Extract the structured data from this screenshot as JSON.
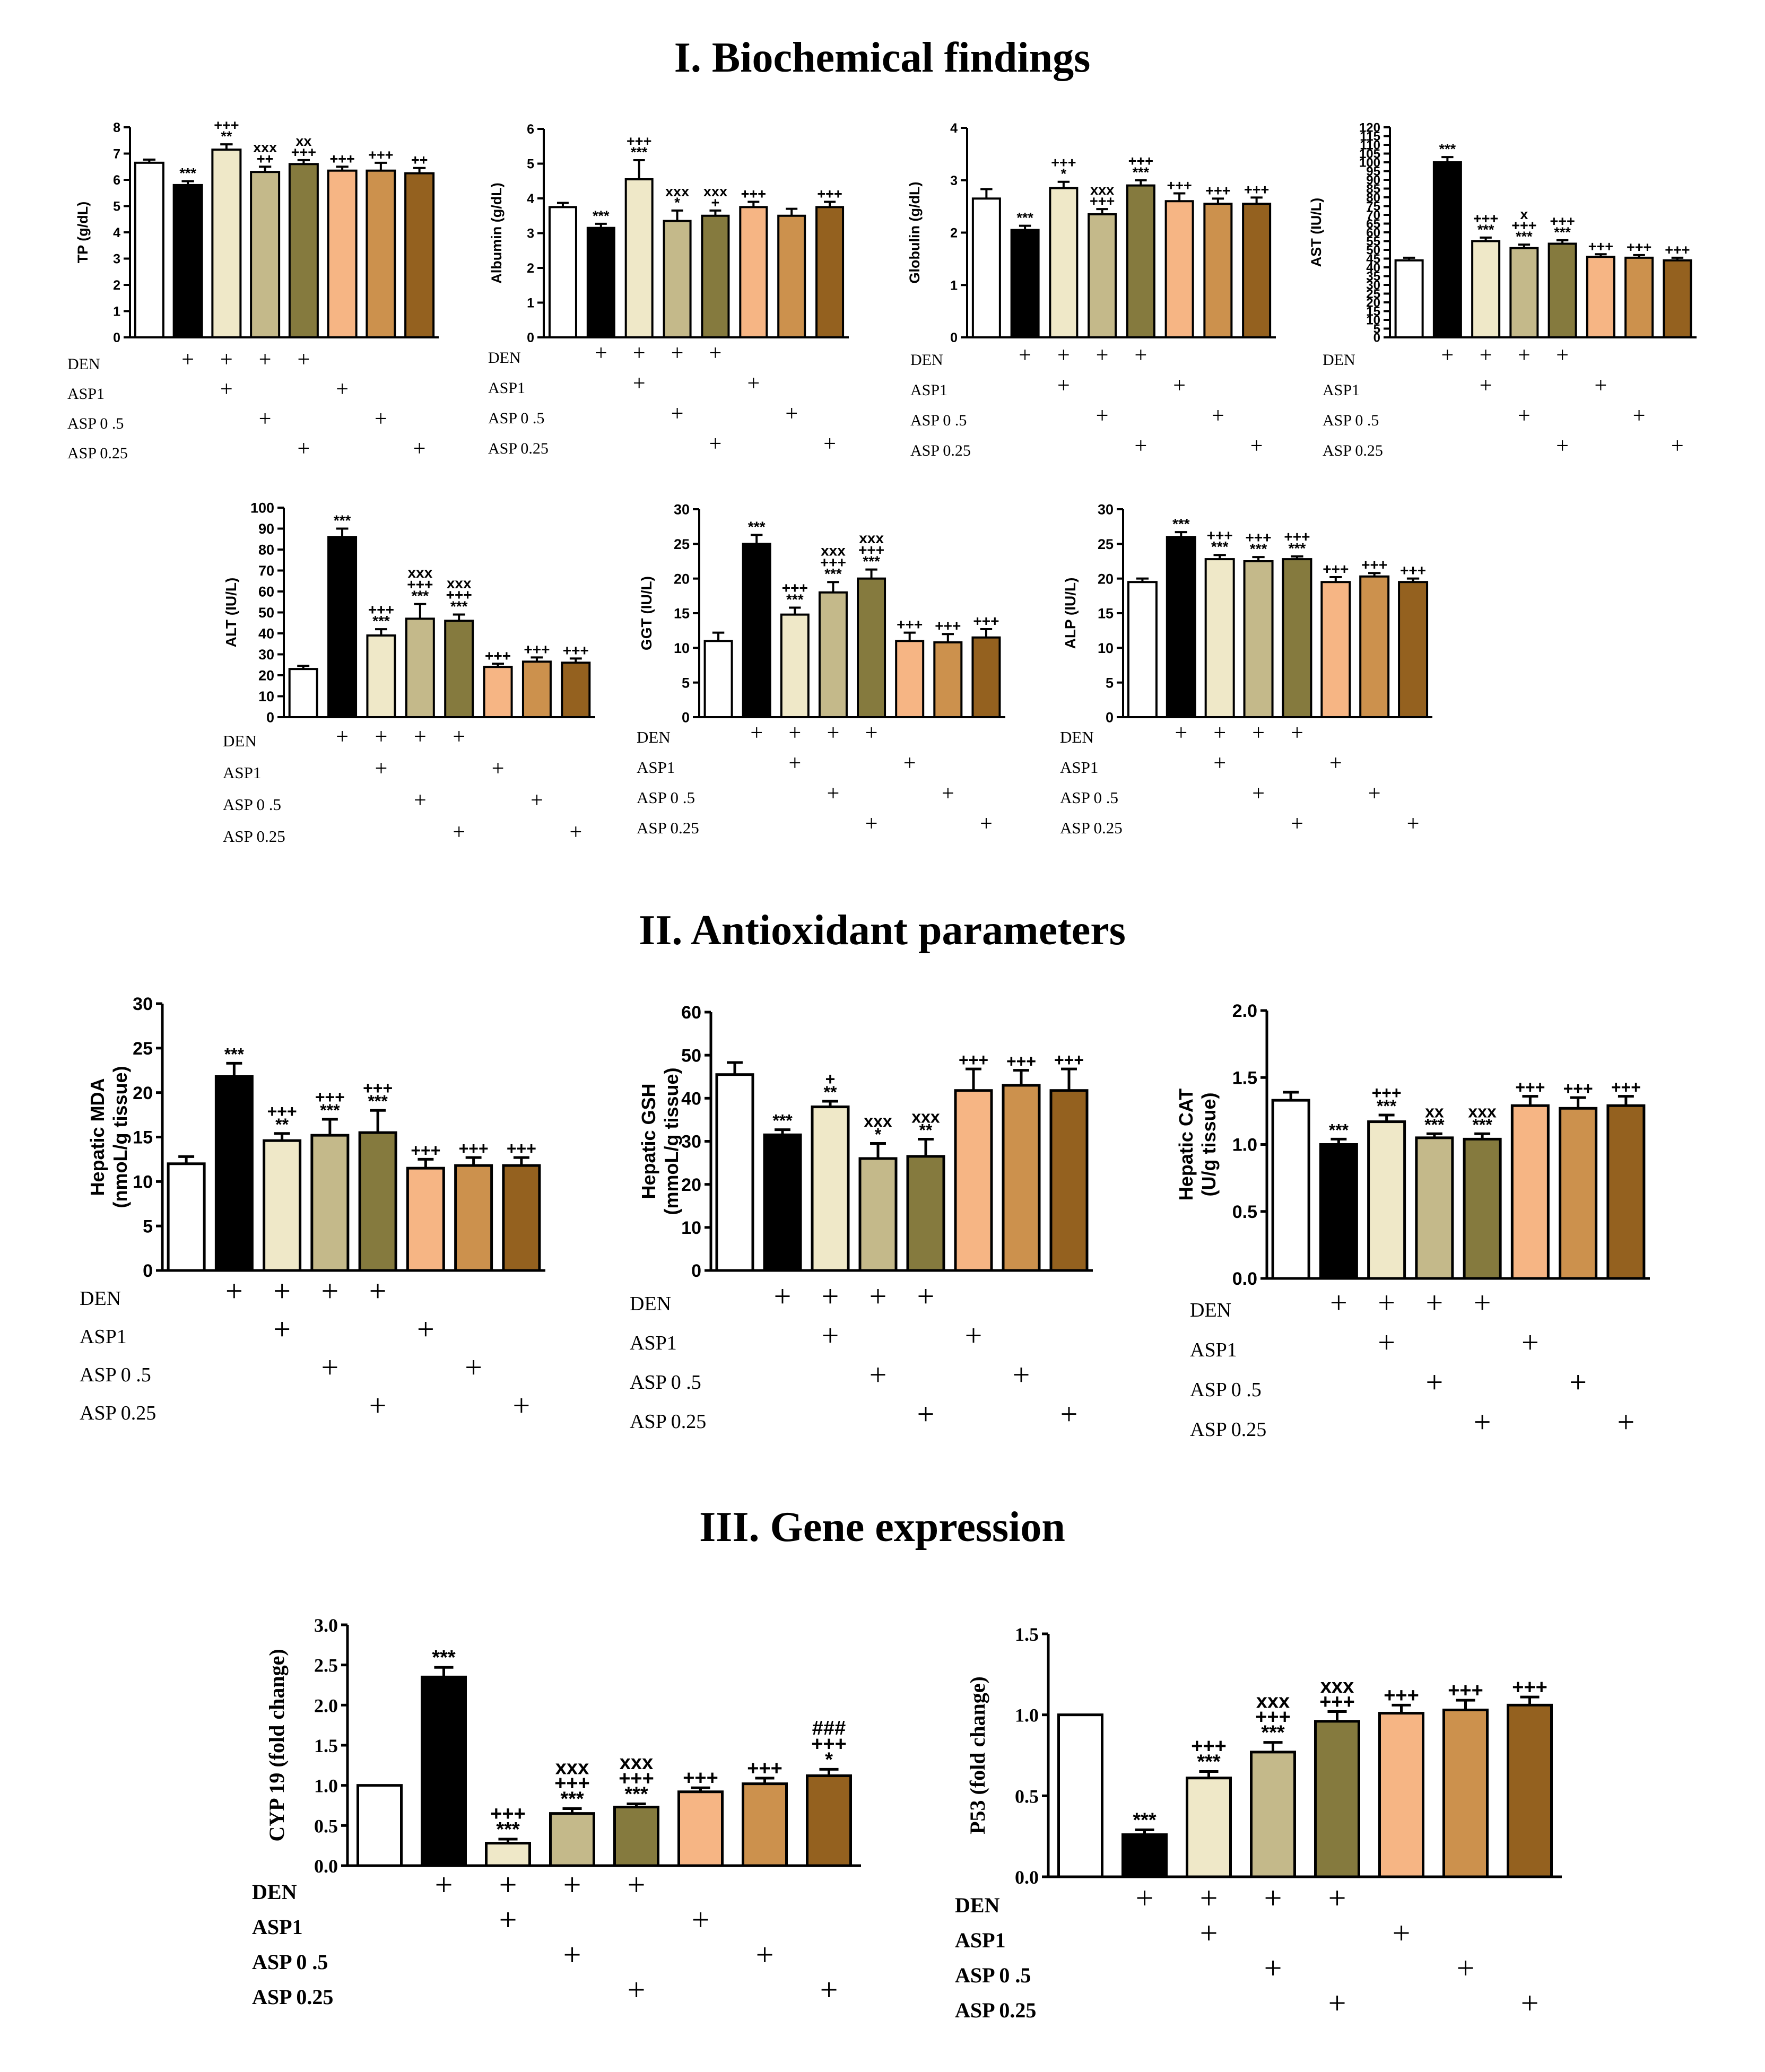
{
  "sections": [
    {
      "title": "I. Biochemical findings"
    },
    {
      "title": "II. Antioxidant parameters"
    },
    {
      "title": "III. Gene expression"
    }
  ],
  "colors": {
    "groups": [
      "#ffffff",
      "#000000",
      "#efe8c8",
      "#c4b98a",
      "#857a3e",
      "#f6b584",
      "#cc914d",
      "#94611f"
    ]
  },
  "design": {
    "row_labels": [
      "DEN",
      "ASP1",
      "ASP 0 .5",
      "ASP 0.25"
    ],
    "plus_symbol": "+",
    "matrix": [
      [
        0,
        1,
        1,
        1,
        1,
        0,
        0,
        0
      ],
      [
        0,
        0,
        1,
        0,
        0,
        1,
        0,
        0
      ],
      [
        0,
        0,
        0,
        1,
        0,
        0,
        1,
        0
      ],
      [
        0,
        0,
        0,
        0,
        1,
        0,
        0,
        1
      ]
    ]
  },
  "chart_data": [
    {
      "id": "tp",
      "type": "bar",
      "ylabel": "TP (g/dL)",
      "ylim": [
        0,
        8
      ],
      "ticks": [
        "0",
        "1",
        "2",
        "3",
        "4",
        "5",
        "6",
        "7",
        "8"
      ],
      "values": [
        6.65,
        5.8,
        7.15,
        6.3,
        6.6,
        6.35,
        6.35,
        6.25
      ],
      "errors": [
        0.12,
        0.15,
        0.2,
        0.2,
        0.15,
        0.15,
        0.3,
        0.2
      ],
      "annotations": [
        [],
        [
          "***"
        ],
        [
          "**",
          "+++"
        ],
        [
          "++",
          "xxx"
        ],
        [
          "+++",
          "xx"
        ],
        [
          "+++"
        ],
        [
          "+++"
        ],
        [
          "++"
        ]
      ]
    },
    {
      "id": "albumin",
      "type": "bar",
      "ylabel": "Albumin (g/dL)",
      "ylim": [
        0,
        6
      ],
      "ticks": [
        "0",
        "1",
        "2",
        "3",
        "4",
        "5",
        "6"
      ],
      "values": [
        3.75,
        3.15,
        4.55,
        3.35,
        3.5,
        3.75,
        3.5,
        3.75
      ],
      "errors": [
        0.12,
        0.12,
        0.55,
        0.3,
        0.15,
        0.15,
        0.2,
        0.15
      ],
      "annotations": [
        [],
        [
          "***"
        ],
        [
          "***",
          "+++"
        ],
        [
          "*",
          "xxx"
        ],
        [
          "+",
          "xxx"
        ],
        [
          "+++"
        ],
        [],
        [
          "+++"
        ]
      ]
    },
    {
      "id": "globulin",
      "type": "bar",
      "ylabel": "Globulin (g/dL)",
      "ylim": [
        0,
        4
      ],
      "ticks": [
        "0",
        "1",
        "2",
        "3",
        "4"
      ],
      "values": [
        2.65,
        2.05,
        2.85,
        2.35,
        2.9,
        2.6,
        2.55,
        2.55
      ],
      "errors": [
        0.18,
        0.08,
        0.12,
        0.1,
        0.1,
        0.15,
        0.1,
        0.12
      ],
      "annotations": [
        [],
        [
          "***"
        ],
        [
          "*",
          "+++"
        ],
        [
          "+++",
          "xxx"
        ],
        [
          "***",
          "+++"
        ],
        [
          "+++"
        ],
        [
          "+++"
        ],
        [
          "+++"
        ]
      ]
    },
    {
      "id": "ast",
      "type": "bar",
      "ylabel": "AST (IU/L)",
      "ylim": [
        0,
        120
      ],
      "ticks": [
        "0",
        "5",
        "10",
        "15",
        "20",
        "25",
        "30",
        "35",
        "40",
        "45",
        "50",
        "55",
        "60",
        "65",
        "70",
        "75",
        "80",
        "85",
        "90",
        "95",
        "100",
        "105",
        "110",
        "115",
        "120"
      ],
      "values": [
        44,
        100,
        55,
        51,
        53.5,
        46,
        45.5,
        44
      ],
      "errors": [
        1.5,
        3,
        2,
        2,
        2,
        1.5,
        1.5,
        1.5
      ],
      "annotations": [
        [],
        [
          "***"
        ],
        [
          "***",
          "+++"
        ],
        [
          "***",
          "+++",
          "x"
        ],
        [
          "***",
          "+++"
        ],
        [
          "+++"
        ],
        [
          "+++"
        ],
        [
          "+++"
        ]
      ]
    },
    {
      "id": "alt",
      "type": "bar",
      "ylabel": "ALT (IU/L)",
      "ylim": [
        0,
        100
      ],
      "ticks": [
        "0",
        "10",
        "20",
        "30",
        "40",
        "50",
        "60",
        "70",
        "80",
        "90",
        "100"
      ],
      "values": [
        23,
        86,
        39,
        47,
        46,
        24,
        26.5,
        26
      ],
      "errors": [
        1.5,
        4,
        3,
        7,
        3,
        1.5,
        2,
        2
      ],
      "annotations": [
        [],
        [
          "***"
        ],
        [
          "***",
          "+++"
        ],
        [
          "***",
          "+++",
          "xxx"
        ],
        [
          "***",
          "+++",
          "xxx"
        ],
        [
          "+++"
        ],
        [
          "+++"
        ],
        [
          "+++"
        ]
      ]
    },
    {
      "id": "ggt",
      "type": "bar",
      "ylabel": "GGT (IU/L)",
      "ylim": [
        0,
        30
      ],
      "ticks": [
        "0",
        "5",
        "10",
        "15",
        "20",
        "25",
        "30"
      ],
      "values": [
        11,
        25,
        14.8,
        18,
        20,
        11,
        10.8,
        11.5
      ],
      "errors": [
        1.2,
        1.3,
        1,
        1.5,
        1.3,
        1.2,
        1.2,
        1.2
      ],
      "annotations": [
        [],
        [
          "***"
        ],
        [
          "***",
          "+++"
        ],
        [
          "***",
          "+++",
          "xxx"
        ],
        [
          "***",
          "+++",
          "xxx"
        ],
        [
          "+++"
        ],
        [
          "+++"
        ],
        [
          "+++"
        ]
      ]
    },
    {
      "id": "alp",
      "type": "bar",
      "ylabel": "ALP (IU/L)",
      "ylim": [
        0,
        30
      ],
      "ticks": [
        "0",
        "5",
        "10",
        "15",
        "20",
        "25",
        "30"
      ],
      "values": [
        19.5,
        26,
        22.8,
        22.5,
        22.8,
        19.5,
        20.3,
        19.5
      ],
      "errors": [
        0.5,
        0.7,
        0.6,
        0.6,
        0.4,
        0.7,
        0.5,
        0.5
      ],
      "annotations": [
        [],
        [
          "***"
        ],
        [
          "***",
          "+++"
        ],
        [
          "***",
          "+++"
        ],
        [
          "***",
          "+++"
        ],
        [
          "+++"
        ],
        [
          "+++"
        ],
        [
          "+++"
        ]
      ]
    },
    {
      "id": "mda",
      "type": "bar",
      "ylabel": "Hepatic MDA",
      "ylabel2": "(nmoL/g tissue)",
      "ylim": [
        0,
        30
      ],
      "ticks": [
        "0",
        "5",
        "10",
        "15",
        "20",
        "25",
        "30"
      ],
      "values": [
        12,
        21.8,
        14.6,
        15.2,
        15.5,
        11.5,
        11.8,
        11.8
      ],
      "errors": [
        0.8,
        1.5,
        0.8,
        1.8,
        2.5,
        1,
        0.9,
        0.9
      ],
      "annotations": [
        [],
        [
          "***"
        ],
        [
          "**",
          "+++"
        ],
        [
          "***",
          "+++"
        ],
        [
          "***",
          "+++"
        ],
        [
          "+++"
        ],
        [
          "+++"
        ],
        [
          "+++"
        ]
      ]
    },
    {
      "id": "gsh",
      "type": "bar",
      "ylabel": "Hepatic GSH",
      "ylabel2": "(mmoL/g tissue)",
      "ylim": [
        0,
        60
      ],
      "ticks": [
        "0",
        "10",
        "20",
        "30",
        "40",
        "50",
        "60"
      ],
      "values": [
        45.5,
        31.5,
        38,
        26,
        26.5,
        41.8,
        43,
        41.8
      ],
      "errors": [
        2.8,
        1.2,
        1.3,
        3.5,
        4,
        5,
        3.5,
        5
      ],
      "annotations": [
        [],
        [
          "***"
        ],
        [
          "**",
          "+"
        ],
        [
          "*",
          "xxx"
        ],
        [
          "**",
          "xxx"
        ],
        [
          "+++"
        ],
        [
          "+++"
        ],
        [
          "+++"
        ]
      ]
    },
    {
      "id": "cat",
      "type": "bar",
      "ylabel": "Hepatic CAT",
      "ylabel2": "(U/g tissue)",
      "ylim": [
        0,
        2
      ],
      "ticks": [
        "0.0",
        "0.5",
        "1.0",
        "1.5",
        "2.0"
      ],
      "values": [
        1.33,
        1.0,
        1.17,
        1.05,
        1.04,
        1.29,
        1.27,
        1.29
      ],
      "errors": [
        0.06,
        0.04,
        0.05,
        0.03,
        0.04,
        0.07,
        0.08,
        0.07
      ],
      "annotations": [
        [],
        [
          "***"
        ],
        [
          "***",
          "+++"
        ],
        [
          "***",
          "xx"
        ],
        [
          "***",
          "xxx"
        ],
        [
          "+++"
        ],
        [
          "+++"
        ],
        [
          "+++"
        ]
      ]
    },
    {
      "id": "cyp19",
      "type": "bar",
      "ylabel": "CYP 19 (fold change)",
      "ylim": [
        0,
        3
      ],
      "ticks": [
        "0.0",
        "0.5",
        "1.0",
        "1.5",
        "2.0",
        "2.5",
        "3.0"
      ],
      "values": [
        1.0,
        2.35,
        0.28,
        0.65,
        0.73,
        0.92,
        1.02,
        1.12
      ],
      "errors": [
        0,
        0.12,
        0.05,
        0.06,
        0.04,
        0.05,
        0.07,
        0.08
      ],
      "annotations": [
        [],
        [
          "***"
        ],
        [
          "***",
          "+++"
        ],
        [
          "***",
          "+++",
          "xxx"
        ],
        [
          "***",
          "+++",
          "xxx"
        ],
        [
          "+++"
        ],
        [
          "+++"
        ],
        [
          "*",
          "+++",
          "###"
        ]
      ]
    },
    {
      "id": "p53",
      "type": "bar",
      "ylabel": "P53 (fold change)",
      "ylim": [
        0,
        1.5
      ],
      "ticks": [
        "0.0",
        "0.5",
        "1.0",
        "1.5"
      ],
      "values": [
        1.0,
        0.26,
        0.61,
        0.77,
        0.96,
        1.01,
        1.03,
        1.06
      ],
      "errors": [
        0,
        0.03,
        0.04,
        0.06,
        0.06,
        0.05,
        0.06,
        0.05
      ],
      "annotations": [
        [],
        [
          "***"
        ],
        [
          "***",
          "+++"
        ],
        [
          "***",
          "+++",
          "xxx"
        ],
        [
          "+++",
          "xxx"
        ],
        [
          "+++"
        ],
        [
          "+++"
        ],
        [
          "+++"
        ]
      ]
    }
  ]
}
